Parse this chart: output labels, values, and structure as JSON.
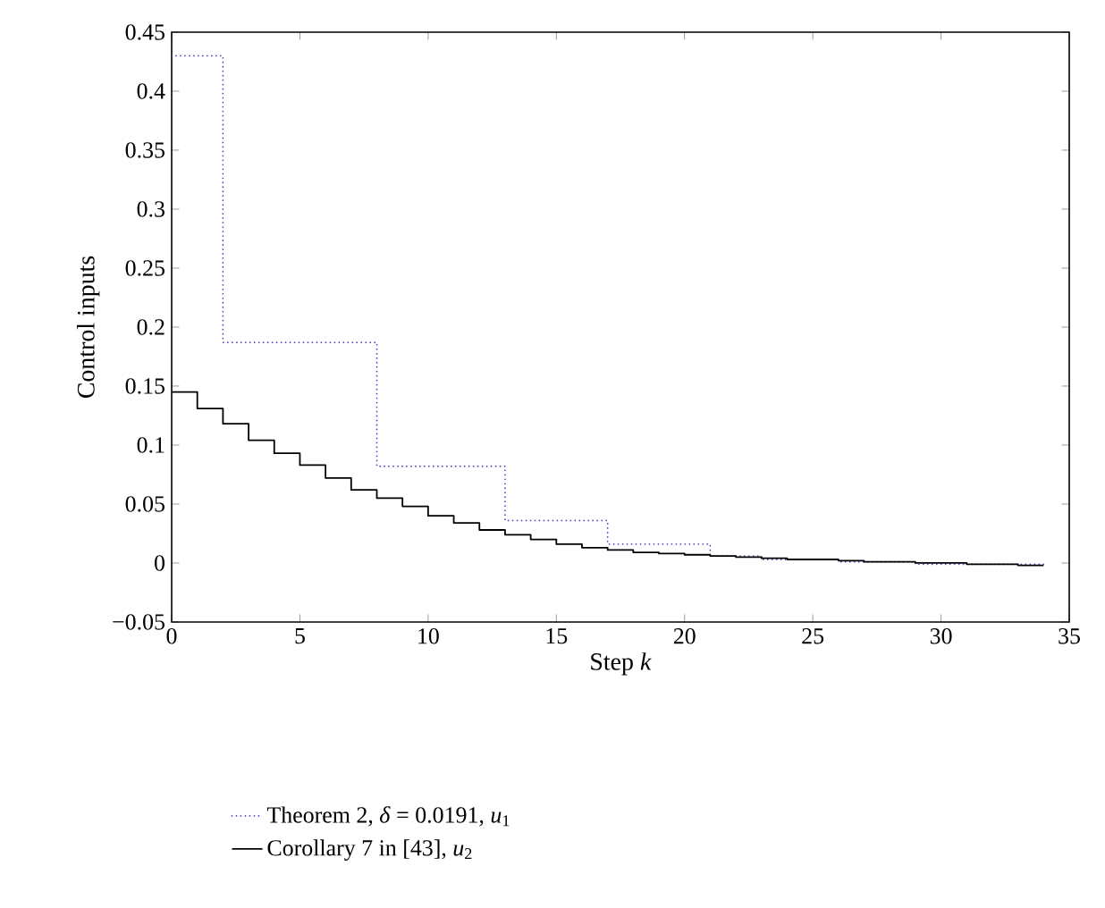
{
  "chart_data": {
    "type": "step",
    "xlabel": "Step *k*",
    "ylabel": "Control inputs",
    "x": [
      0,
      1,
      2,
      3,
      4,
      5,
      6,
      7,
      8,
      9,
      10,
      11,
      12,
      13,
      14,
      15,
      16,
      17,
      18,
      19,
      20,
      21,
      22,
      23,
      24,
      25,
      26,
      27,
      28,
      29,
      30,
      31,
      32,
      33,
      34
    ],
    "series": [
      {
        "name": "Theorem 2, *δ* = 0.0191, *u*$_{1}$",
        "color": "#4a4ac8",
        "line_style": "dotted",
        "x": [
          0,
          2,
          8,
          13,
          17,
          21,
          23,
          26,
          29,
          34
        ],
        "values": [
          0.43,
          0.187,
          0.082,
          0.036,
          0.016,
          0.006,
          0.003,
          0.001,
          -0.001,
          -0.001
        ]
      },
      {
        "name": "Corollary 7 in [43], *u*$_{2}$",
        "color": "#000000",
        "line_style": "solid",
        "values": [
          0.145,
          0.131,
          0.118,
          0.104,
          0.093,
          0.083,
          0.072,
          0.062,
          0.055,
          0.048,
          0.04,
          0.034,
          0.028,
          0.024,
          0.02,
          0.016,
          0.013,
          0.011,
          0.009,
          0.008,
          0.007,
          0.006,
          0.005,
          0.004,
          0.003,
          0.003,
          0.002,
          0.001,
          0.001,
          0,
          0,
          -0.001,
          -0.001,
          -0.002,
          -0.002
        ]
      }
    ],
    "xlim": [
      0,
      35
    ],
    "xticks": [
      0,
      5,
      10,
      15,
      20,
      25,
      30,
      35
    ],
    "ylim": [
      -0.05,
      0.45
    ],
    "yticks": [
      {
        "value": -0.05,
        "label": "−0.05"
      },
      0,
      0.05,
      0.1,
      0.15,
      0.2,
      0.25,
      0.3,
      0.35,
      0.4,
      0.45
    ],
    "grid": false,
    "legend": "bottom"
  }
}
